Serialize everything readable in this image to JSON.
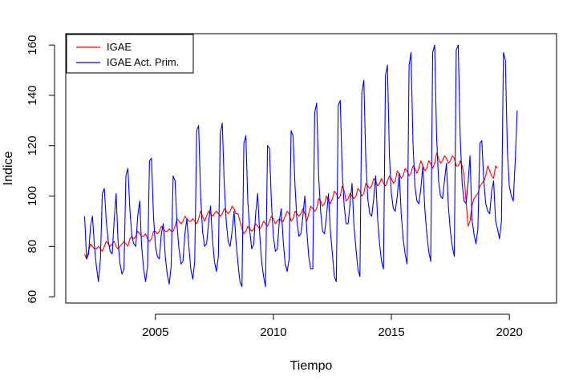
{
  "chart_data": {
    "type": "line",
    "xlabel": "Tiempo",
    "ylabel": "Indice",
    "xlim": [
      2001.2,
      2022.0
    ],
    "ylim": [
      57.5,
      164.5
    ],
    "x_ticks": [
      2005,
      2010,
      2015,
      2020
    ],
    "y_ticks": [
      60,
      80,
      100,
      120,
      140,
      160
    ],
    "legend_position": "top-left",
    "x_start": 2002.0,
    "x_step": 0.08333,
    "series": [
      {
        "name": "IGAE",
        "color": "#ff0000",
        "values": [
          77,
          75,
          78,
          81,
          80,
          79,
          79,
          80,
          79,
          78,
          80,
          82,
          81,
          80,
          81,
          82,
          80,
          79,
          80,
          81,
          82,
          81,
          80,
          83,
          84,
          83,
          84,
          86,
          85,
          84,
          84,
          85,
          83,
          82,
          83,
          86,
          86,
          85,
          86,
          88,
          87,
          86,
          86,
          87,
          86,
          86,
          88,
          91,
          90,
          89,
          90,
          92,
          91,
          90,
          90,
          91,
          90,
          89,
          91,
          94,
          92,
          90,
          92,
          94,
          93,
          92,
          93,
          94,
          93,
          92,
          93,
          95,
          94,
          93,
          94,
          96,
          95,
          93,
          93,
          90,
          87,
          85,
          86,
          88,
          87,
          86,
          87,
          89,
          88,
          87,
          88,
          90,
          89,
          88,
          90,
          92,
          91,
          89,
          90,
          91,
          90,
          90,
          92,
          94,
          93,
          90,
          91,
          94,
          93,
          92,
          93,
          95,
          93,
          90,
          93,
          96,
          95,
          94,
          95,
          99,
          98,
          96,
          97,
          100,
          98,
          97,
          99,
          102,
          101,
          99,
          100,
          104,
          102,
          98,
          99,
          101,
          100,
          99,
          100,
          103,
          102,
          100,
          101,
          105,
          104,
          103,
          104,
          107,
          106,
          104,
          105,
          107,
          105,
          104,
          106,
          108,
          107,
          105,
          106,
          110,
          109,
          107,
          108,
          111,
          110,
          108,
          109,
          112,
          111,
          109,
          111,
          114,
          112,
          110,
          111,
          114,
          113,
          111,
          113,
          117,
          115,
          113,
          114,
          116,
          115,
          113,
          114,
          116,
          115,
          112,
          112,
          114,
          112,
          108,
          98,
          88,
          90,
          96,
          99,
          100,
          101,
          104,
          105,
          106,
          108,
          112,
          110,
          108,
          107,
          112,
          111
        ]
      },
      {
        "name": "IGAE Act. Prim.",
        "color": "#0000ff",
        "values": [
          92,
          75,
          77,
          88,
          92,
          80,
          72,
          66,
          75,
          101,
          103,
          90,
          82,
          78,
          77,
          90,
          101,
          82,
          73,
          69,
          71,
          108,
          111,
          95,
          84,
          81,
          80,
          92,
          98,
          80,
          71,
          66,
          72,
          114,
          115,
          92,
          80,
          76,
          75,
          85,
          89,
          76,
          69,
          65,
          72,
          108,
          106,
          88,
          79,
          73,
          74,
          85,
          91,
          80,
          71,
          67,
          74,
          126,
          128,
          100,
          86,
          80,
          81,
          89,
          96,
          83,
          74,
          70,
          76,
          125,
          129,
          105,
          90,
          82,
          80,
          86,
          94,
          82,
          73,
          66,
          64,
          121,
          124,
          98,
          86,
          79,
          81,
          93,
          101,
          85,
          74,
          68,
          64,
          120,
          119,
          97,
          84,
          78,
          79,
          90,
          95,
          82,
          73,
          70,
          75,
          126,
          124,
          104,
          90,
          84,
          85,
          92,
          100,
          86,
          76,
          71,
          71,
          133,
          137,
          108,
          94,
          86,
          85,
          92,
          101,
          86,
          77,
          68,
          66,
          136,
          138,
          110,
          96,
          89,
          89,
          97,
          105,
          88,
          79,
          71,
          68,
          141,
          146,
          115,
          99,
          93,
          92,
          99,
          108,
          91,
          81,
          74,
          71,
          148,
          152,
          116,
          101,
          95,
          94,
          100,
          109,
          93,
          83,
          77,
          73,
          152,
          157,
          121,
          104,
          98,
          97,
          103,
          112,
          95,
          85,
          78,
          74,
          157,
          160,
          124,
          106,
          100,
          99,
          106,
          113,
          96,
          86,
          80,
          76,
          158,
          160,
          124,
          105,
          98,
          97,
          105,
          116,
          91,
          85,
          81,
          87,
          121,
          122,
          106,
          97,
          94,
          93,
          102,
          106,
          90,
          87,
          83,
          90,
          157,
          154,
          118,
          104,
          100,
          98,
          114,
          134
        ]
      }
    ]
  }
}
